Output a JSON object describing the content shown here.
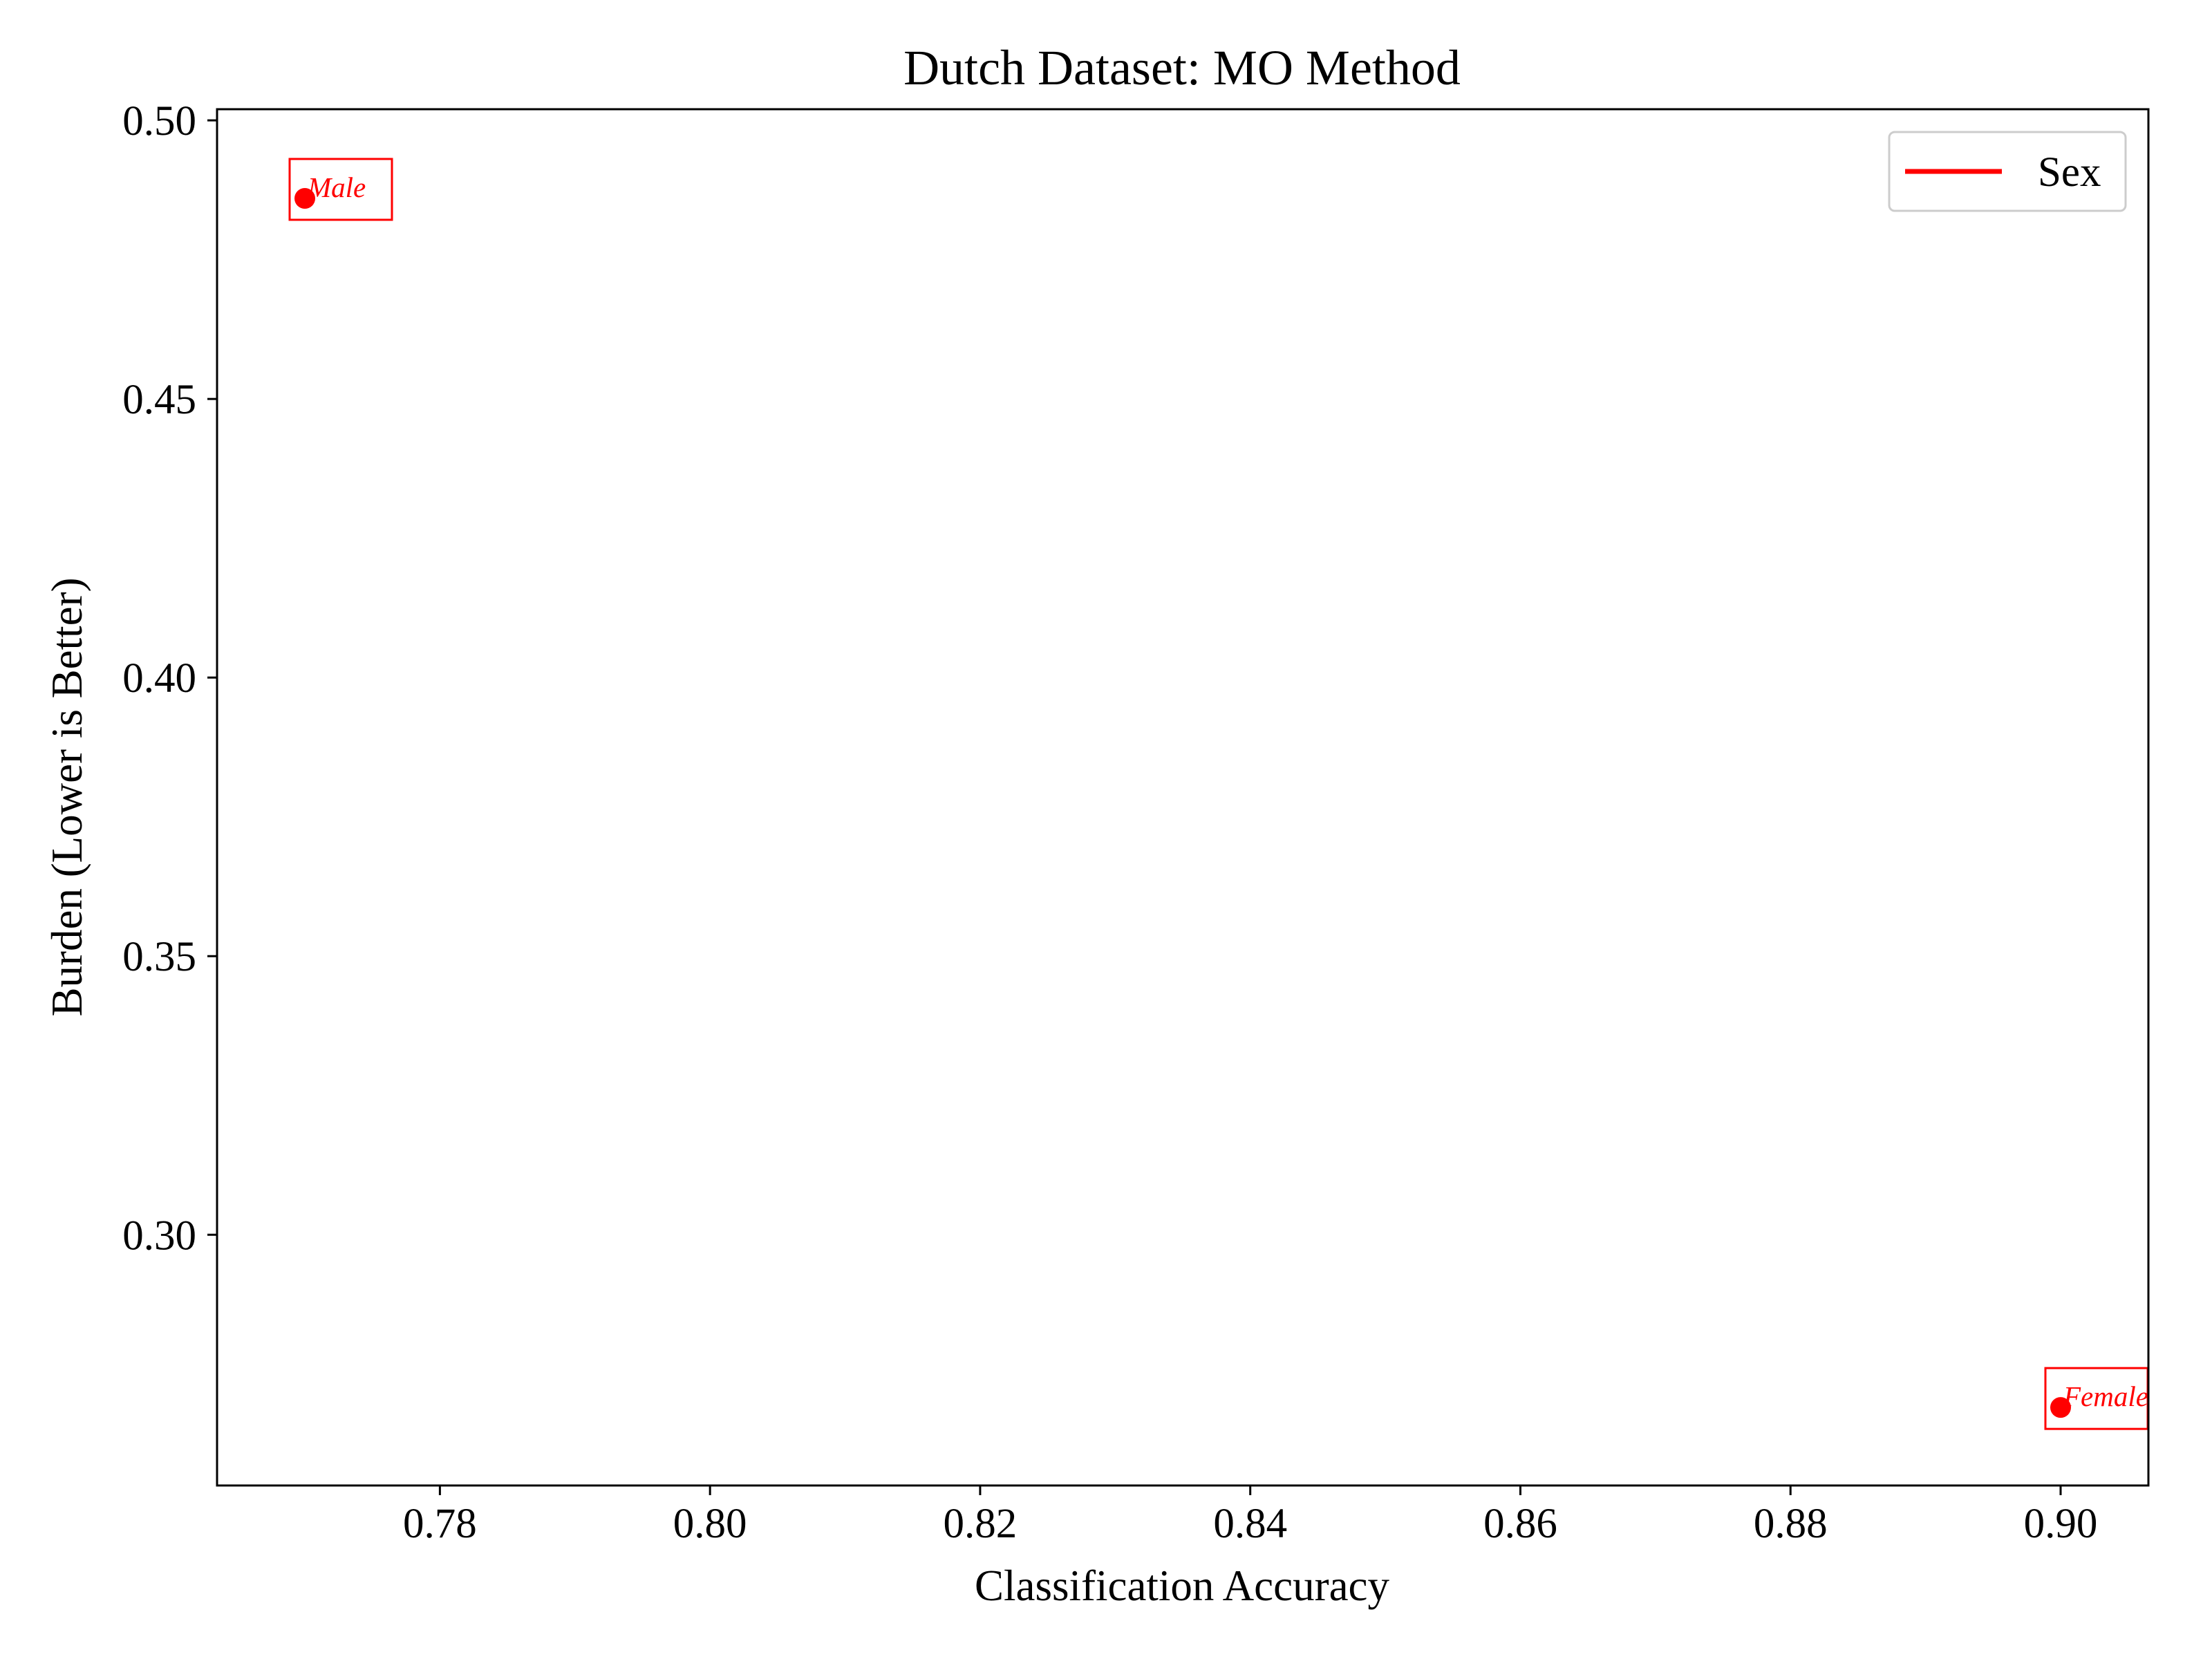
{
  "chart_data": {
    "type": "scatter",
    "title": "Dutch Dataset: MO Method",
    "xlabel": "Classification Accuracy",
    "ylabel": "Burden (Lower is Better)",
    "xlim": [
      0.7635,
      0.9065
    ],
    "ylim": [
      0.255,
      0.502
    ],
    "xticks": [
      0.78,
      0.8,
      0.82,
      0.84,
      0.86,
      0.88,
      0.9
    ],
    "xtick_labels": [
      "0.78",
      "0.80",
      "0.82",
      "0.84",
      "0.86",
      "0.88",
      "0.90"
    ],
    "yticks": [
      0.3,
      0.35,
      0.4,
      0.45,
      0.5
    ],
    "ytick_labels": [
      "0.30",
      "0.35",
      "0.40",
      "0.45",
      "0.50"
    ],
    "grid": false,
    "legend": {
      "position": "top-right",
      "entries": [
        {
          "label": "Sex",
          "color": "#ff0000"
        }
      ]
    },
    "series": [
      {
        "name": "Sex",
        "color": "#ff0000",
        "points": [
          {
            "x": 0.77,
            "y": 0.486,
            "label": "Male"
          },
          {
            "x": 0.9,
            "y": 0.269,
            "label": "Female"
          }
        ]
      }
    ]
  }
}
